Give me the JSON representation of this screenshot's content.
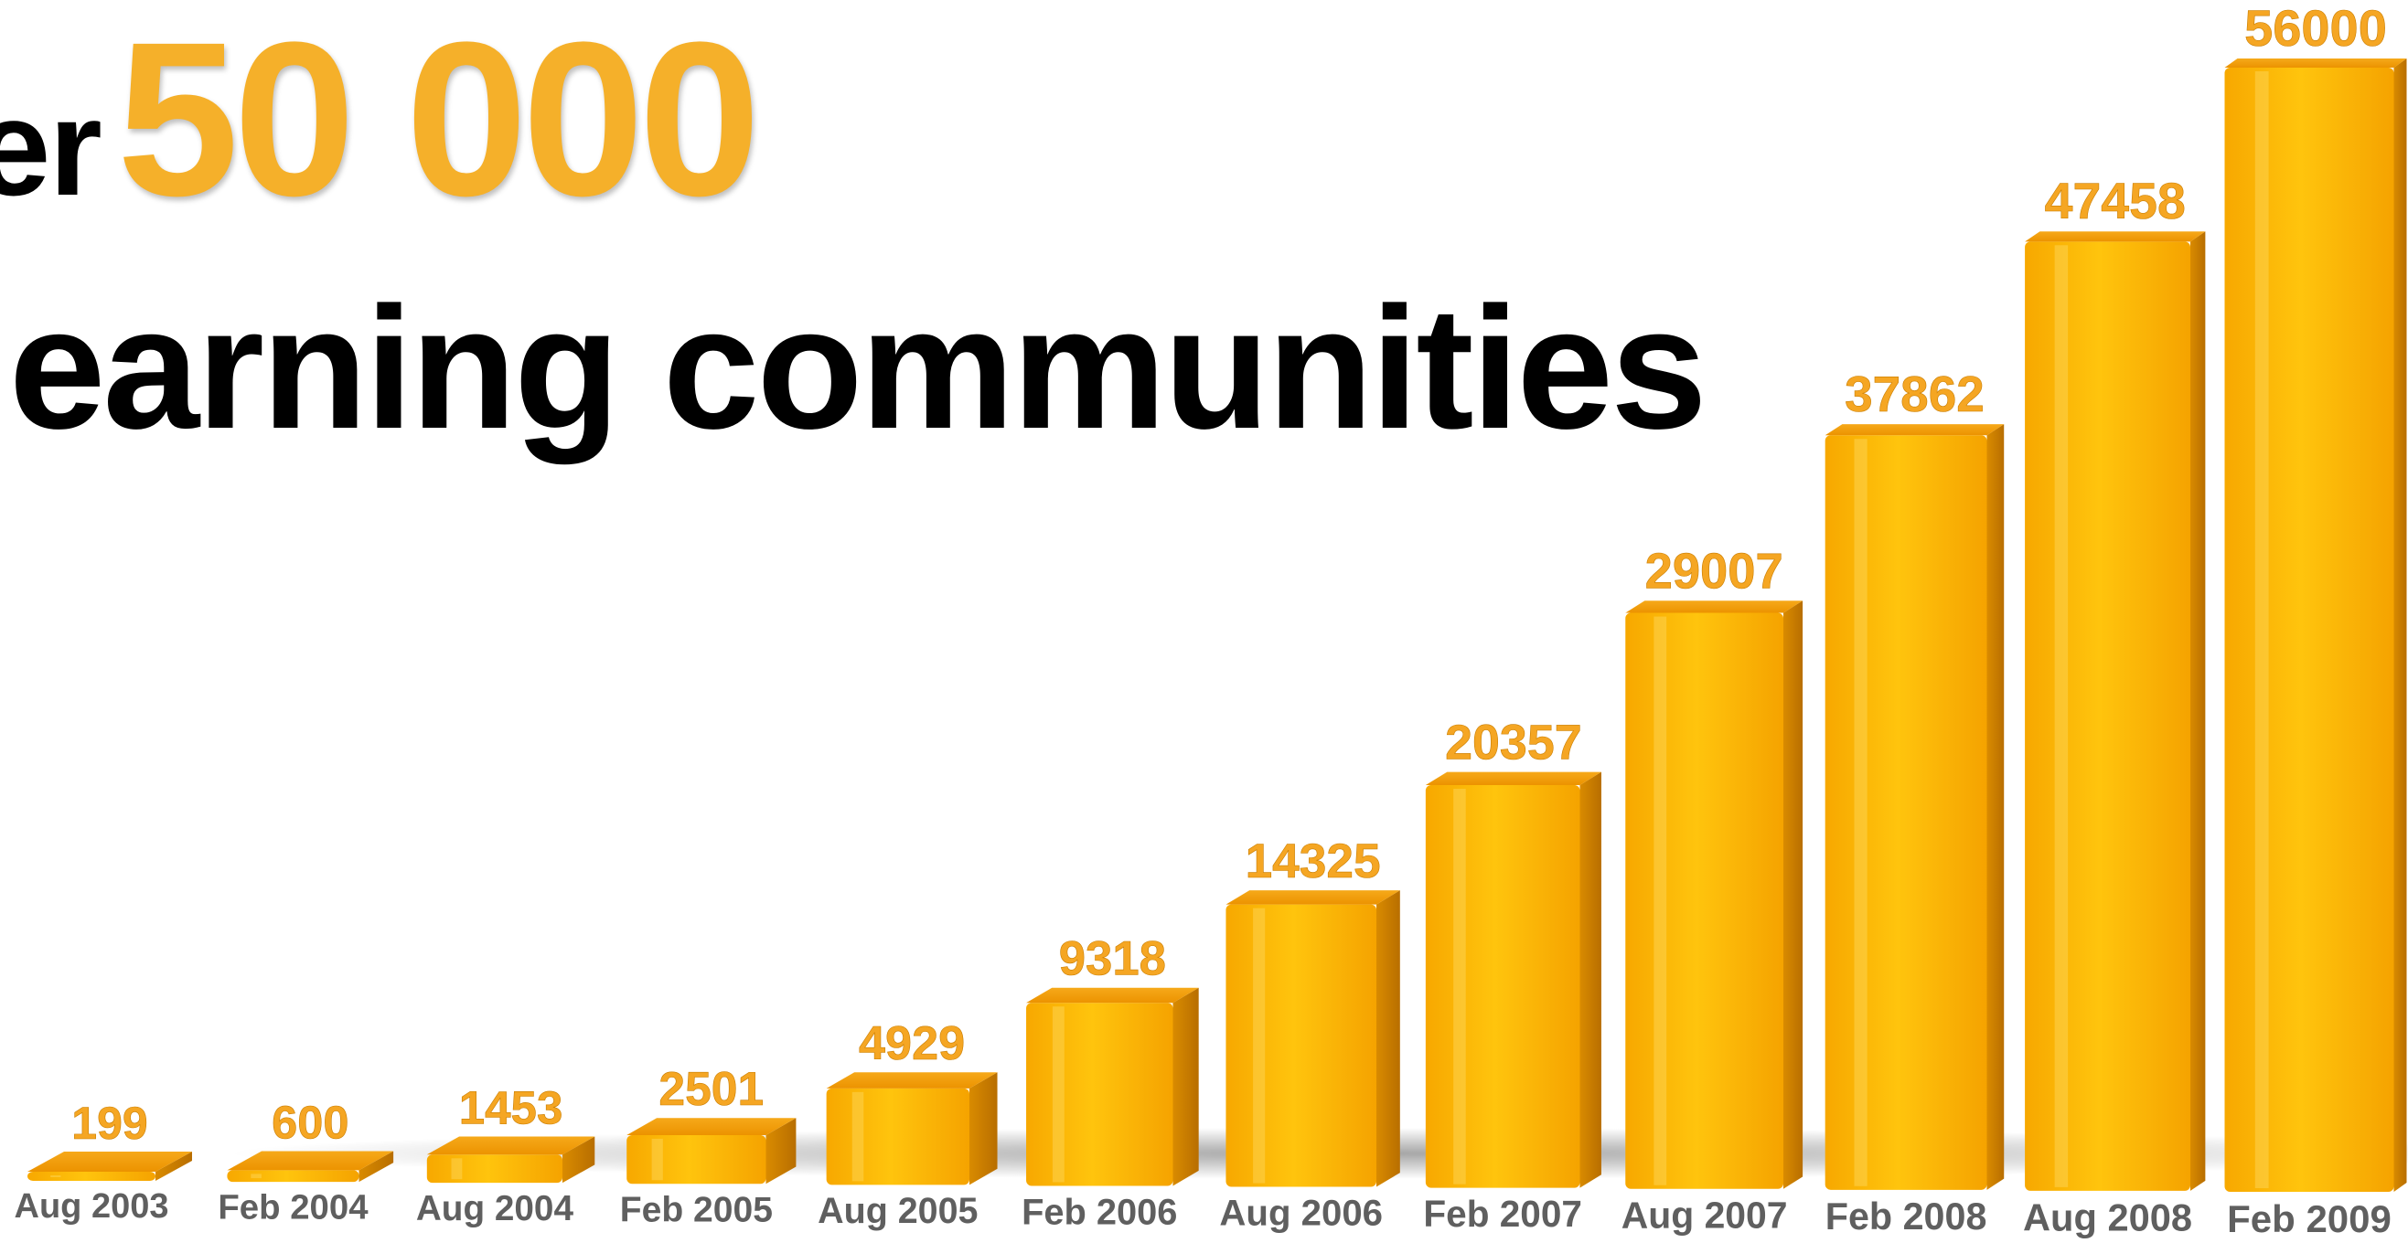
{
  "title": {
    "prefix": "er",
    "number": "50 000",
    "line2": "learning communities"
  },
  "colors": {
    "bar_front_light": "#ffc40d",
    "bar_front_dark": "#f5a300",
    "bar_top": "#f29a12",
    "bar_side": "#c97a00",
    "value_label": "#f5a623",
    "category_label": "#5f5f5f",
    "title_number": "#f5b02a"
  },
  "chart_data": {
    "type": "bar",
    "categories": [
      "Aug 2003",
      "Feb 2004",
      "Aug 2004",
      "Feb 2005",
      "Aug 2005",
      "Feb 2006",
      "Aug 2006",
      "Feb 2007",
      "Aug 2007",
      "Feb 2008",
      "Aug 2008",
      "Feb 2009"
    ],
    "values": [
      199,
      600,
      1453,
      2501,
      4929,
      9318,
      14325,
      20357,
      29007,
      37862,
      47458,
      56000
    ],
    "value_labels": [
      "199",
      "600",
      "1453",
      "2501",
      "4929",
      "9318",
      "14325",
      "20357",
      "29007",
      "37862",
      "47458",
      "56000"
    ],
    "title": "",
    "xlabel": "",
    "ylabel": "",
    "ylim": [
      0,
      56000
    ],
    "grid": false,
    "legend": "none",
    "style": "3d-perspective"
  }
}
